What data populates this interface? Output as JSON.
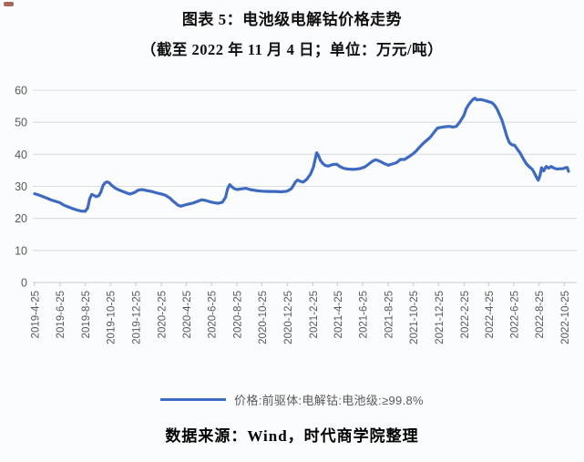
{
  "page": {
    "title": "图表 5：电池级电解钴价格走势",
    "subtitle": "（截至 2022 年 11 月 4 日；单位：万元/吨）",
    "footer": "数据来源：Wind，时代商学院整理"
  },
  "legend": {
    "label": "价格:前驱体:电解钴:电池级:≥99.8%"
  },
  "colors": {
    "accent_blue": "#3e6ac1",
    "grid": "#d9dce1",
    "axis": "#c6cad1",
    "axis_text": "#595959",
    "background": "#fbfcfd",
    "corner_mark": "#9c4a40"
  },
  "chart_data": {
    "type": "line",
    "title": "图表 5：电池级电解钴价格走势",
    "subtitle": "（截至 2022 年 11 月 4 日；单位：万元/吨）",
    "ylabel": "万元/吨",
    "ylim": [
      0,
      60
    ],
    "yticks": [
      0,
      10,
      20,
      30,
      40,
      50,
      60
    ],
    "grid": true,
    "legend_position": "bottom",
    "x_start": "2019-4-25",
    "x_end": "2022-11-4",
    "xtick_labels": [
      "2019-4-25",
      "2019-6-25",
      "2019-8-25",
      "2019-10-25",
      "2019-12-25",
      "2020-2-25",
      "2020-4-25",
      "2020-6-25",
      "2020-8-25",
      "2020-10-25",
      "2020-12-25",
      "2021-2-25",
      "2021-4-25",
      "2021-6-25",
      "2021-8-25",
      "2021-10-25",
      "2021-12-25",
      "2022-2-25",
      "2022-4-25",
      "2022-6-25",
      "2022-8-25",
      "2022-10-25"
    ],
    "series": [
      {
        "name": "价格:前驱体:电解钴:电池级:≥99.8%",
        "color": "#3e6ac1",
        "points": [
          [
            "2019-4-25",
            27.7
          ],
          [
            "2019-5-5",
            27.3
          ],
          [
            "2019-5-15",
            26.8
          ],
          [
            "2019-5-25",
            26.3
          ],
          [
            "2019-6-5",
            25.7
          ],
          [
            "2019-6-15",
            25.3
          ],
          [
            "2019-6-25",
            24.9
          ],
          [
            "2019-7-5",
            24.1
          ],
          [
            "2019-7-15",
            23.6
          ],
          [
            "2019-7-25",
            23.1
          ],
          [
            "2019-8-5",
            22.6
          ],
          [
            "2019-8-15",
            22.3
          ],
          [
            "2019-8-25",
            22.2
          ],
          [
            "2019-8-31",
            23.2
          ],
          [
            "2019-9-5",
            26.2
          ],
          [
            "2019-9-10",
            27.5
          ],
          [
            "2019-9-15",
            27.2
          ],
          [
            "2019-9-20",
            26.8
          ],
          [
            "2019-9-27",
            27.1
          ],
          [
            "2019-10-2",
            28.2
          ],
          [
            "2019-10-7",
            30.2
          ],
          [
            "2019-10-12",
            31.1
          ],
          [
            "2019-10-17",
            31.4
          ],
          [
            "2019-10-22",
            31.1
          ],
          [
            "2019-10-28",
            30.3
          ],
          [
            "2019-11-5",
            29.5
          ],
          [
            "2019-11-14",
            28.9
          ],
          [
            "2019-11-24",
            28.4
          ],
          [
            "2019-12-4",
            27.9
          ],
          [
            "2019-12-12",
            27.6
          ],
          [
            "2019-12-22",
            28.1
          ],
          [
            "2019-12-31",
            28.8
          ],
          [
            "2020-1-10",
            29.0
          ],
          [
            "2020-1-20",
            28.7
          ],
          [
            "2020-2-1",
            28.4
          ],
          [
            "2020-2-12",
            28.0
          ],
          [
            "2020-2-25",
            27.6
          ],
          [
            "2020-3-6",
            27.2
          ],
          [
            "2020-3-16",
            26.4
          ],
          [
            "2020-3-26",
            25.2
          ],
          [
            "2020-4-5",
            24.1
          ],
          [
            "2020-4-12",
            23.8
          ],
          [
            "2020-4-22",
            24.2
          ],
          [
            "2020-5-2",
            24.5
          ],
          [
            "2020-5-12",
            24.8
          ],
          [
            "2020-5-22",
            25.3
          ],
          [
            "2020-6-1",
            25.8
          ],
          [
            "2020-6-11",
            25.6
          ],
          [
            "2020-6-21",
            25.2
          ],
          [
            "2020-7-1",
            24.9
          ],
          [
            "2020-7-11",
            24.7
          ],
          [
            "2020-7-21",
            25.0
          ],
          [
            "2020-7-29",
            26.6
          ],
          [
            "2020-8-3",
            29.3
          ],
          [
            "2020-8-8",
            30.5
          ],
          [
            "2020-8-13",
            29.9
          ],
          [
            "2020-8-19",
            29.3
          ],
          [
            "2020-8-26",
            29.0
          ],
          [
            "2020-9-5",
            29.2
          ],
          [
            "2020-9-16",
            29.4
          ],
          [
            "2020-9-26",
            29.0
          ],
          [
            "2020-10-10",
            28.7
          ],
          [
            "2020-10-25",
            28.5
          ],
          [
            "2020-11-10",
            28.4
          ],
          [
            "2020-11-25",
            28.4
          ],
          [
            "2020-12-10",
            28.3
          ],
          [
            "2020-12-25",
            28.5
          ],
          [
            "2021-1-4",
            29.3
          ],
          [
            "2021-1-9",
            30.3
          ],
          [
            "2021-1-14",
            31.4
          ],
          [
            "2021-1-19",
            32.0
          ],
          [
            "2021-1-25",
            31.6
          ],
          [
            "2021-2-1",
            31.3
          ],
          [
            "2021-2-10",
            32.2
          ],
          [
            "2021-2-19",
            33.8
          ],
          [
            "2021-2-26",
            36.0
          ],
          [
            "2021-3-3",
            38.8
          ],
          [
            "2021-3-6",
            40.5
          ],
          [
            "2021-3-10",
            39.7
          ],
          [
            "2021-3-15",
            38.1
          ],
          [
            "2021-3-21",
            37.1
          ],
          [
            "2021-3-27",
            36.5
          ],
          [
            "2021-4-3",
            36.3
          ],
          [
            "2021-4-13",
            36.8
          ],
          [
            "2021-4-23",
            36.9
          ],
          [
            "2021-5-2",
            36.1
          ],
          [
            "2021-5-11",
            35.6
          ],
          [
            "2021-5-21",
            35.4
          ],
          [
            "2021-6-1",
            35.3
          ],
          [
            "2021-6-11",
            35.4
          ],
          [
            "2021-6-21",
            35.6
          ],
          [
            "2021-7-1",
            36.1
          ],
          [
            "2021-7-10",
            37.0
          ],
          [
            "2021-7-19",
            37.9
          ],
          [
            "2021-7-27",
            38.3
          ],
          [
            "2021-8-6",
            37.8
          ],
          [
            "2021-8-16",
            37.1
          ],
          [
            "2021-8-26",
            36.6
          ],
          [
            "2021-9-5",
            37.0
          ],
          [
            "2021-9-15",
            37.4
          ],
          [
            "2021-9-24",
            38.4
          ],
          [
            "2021-10-4",
            38.4
          ],
          [
            "2021-10-14",
            39.2
          ],
          [
            "2021-10-24",
            40.1
          ],
          [
            "2021-11-1",
            41.0
          ],
          [
            "2021-11-10",
            42.3
          ],
          [
            "2021-11-19",
            43.5
          ],
          [
            "2021-11-28",
            44.5
          ],
          [
            "2021-12-5",
            45.3
          ],
          [
            "2021-12-11",
            46.3
          ],
          [
            "2021-12-17",
            47.3
          ],
          [
            "2021-12-23",
            48.2
          ],
          [
            "2021-12-31",
            48.4
          ],
          [
            "2022-1-10",
            48.6
          ],
          [
            "2022-1-20",
            48.7
          ],
          [
            "2022-1-29",
            48.5
          ],
          [
            "2022-2-6",
            48.7
          ],
          [
            "2022-2-13",
            49.8
          ],
          [
            "2022-2-19",
            51.0
          ],
          [
            "2022-2-25",
            52.3
          ],
          [
            "2022-3-2",
            54.2
          ],
          [
            "2022-3-8",
            55.5
          ],
          [
            "2022-3-14",
            56.5
          ],
          [
            "2022-3-19",
            57.2
          ],
          [
            "2022-3-23",
            57.5
          ],
          [
            "2022-3-28",
            57.0
          ],
          [
            "2022-4-6",
            57.1
          ],
          [
            "2022-4-16",
            56.8
          ],
          [
            "2022-4-26",
            56.4
          ],
          [
            "2022-5-3",
            56.1
          ],
          [
            "2022-5-9",
            55.4
          ],
          [
            "2022-5-15",
            54.2
          ],
          [
            "2022-5-21",
            52.5
          ],
          [
            "2022-5-27",
            50.8
          ],
          [
            "2022-6-2",
            48.3
          ],
          [
            "2022-6-8",
            45.6
          ],
          [
            "2022-6-14",
            43.7
          ],
          [
            "2022-6-20",
            43.0
          ],
          [
            "2022-6-27",
            42.8
          ],
          [
            "2022-7-4",
            41.5
          ],
          [
            "2022-7-11",
            40.2
          ],
          [
            "2022-7-18",
            38.6
          ],
          [
            "2022-7-25",
            37.1
          ],
          [
            "2022-8-1",
            36.1
          ],
          [
            "2022-8-8",
            35.4
          ],
          [
            "2022-8-14",
            34.1
          ],
          [
            "2022-8-19",
            32.8
          ],
          [
            "2022-8-23",
            31.9
          ],
          [
            "2022-8-27",
            33.3
          ],
          [
            "2022-8-31",
            35.8
          ],
          [
            "2022-9-5",
            34.8
          ],
          [
            "2022-9-11",
            36.2
          ],
          [
            "2022-9-17",
            35.7
          ],
          [
            "2022-9-23",
            36.2
          ],
          [
            "2022-9-30",
            35.7
          ],
          [
            "2022-10-7",
            35.4
          ],
          [
            "2022-10-14",
            35.5
          ],
          [
            "2022-10-21",
            35.5
          ],
          [
            "2022-10-27",
            35.8
          ],
          [
            "2022-11-1",
            35.9
          ],
          [
            "2022-11-4",
            34.7
          ]
        ]
      }
    ]
  }
}
